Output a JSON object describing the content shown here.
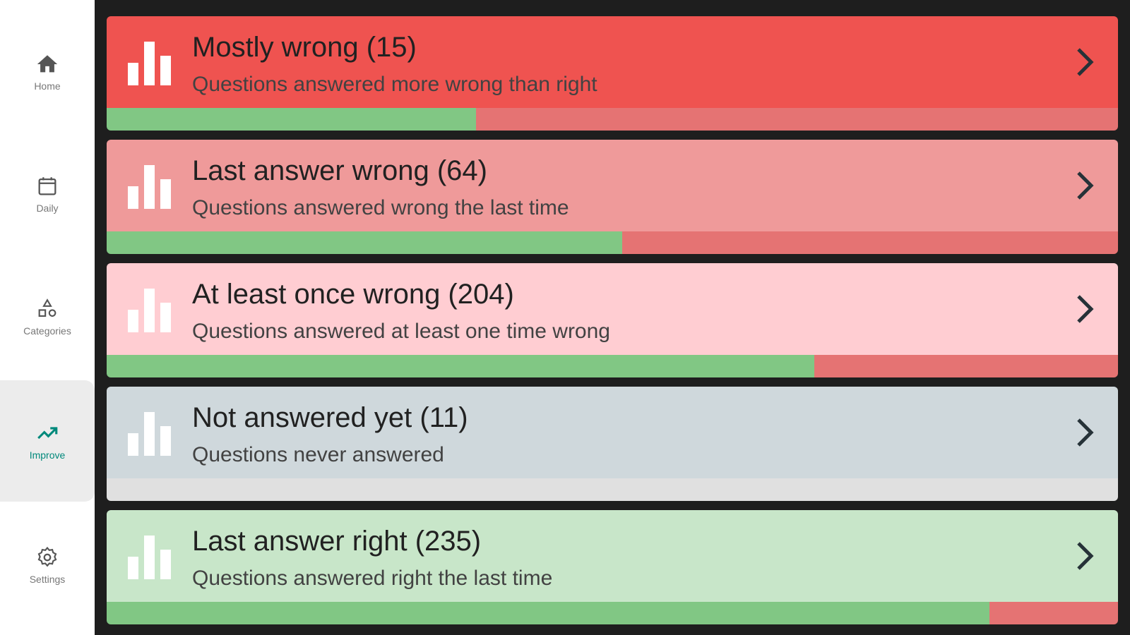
{
  "sidebar": {
    "items": [
      {
        "label": "Home",
        "icon": "home-icon",
        "selected": false
      },
      {
        "label": "Daily",
        "icon": "calendar-icon",
        "selected": false
      },
      {
        "label": "Categories",
        "icon": "shapes-icon",
        "selected": false
      },
      {
        "label": "Improve",
        "icon": "trending-up-icon",
        "selected": true
      },
      {
        "label": "Settings",
        "icon": "gear-icon",
        "selected": false
      }
    ]
  },
  "colors": {
    "accent": "#00897b",
    "green": "#81c784",
    "background": "#1e1e1e"
  },
  "cards": [
    {
      "title": "Mostly wrong (15)",
      "subtitle": "Questions answered more wrong than right",
      "progress": 0.365,
      "bg": "#ef5350",
      "rest": "#e57373"
    },
    {
      "title": "Last answer wrong (64)",
      "subtitle": "Questions answered wrong the last time",
      "progress": 0.51,
      "bg": "#ef9a9a",
      "rest": "#e57373"
    },
    {
      "title": "At least once wrong (204)",
      "subtitle": "Questions answered at least one time wrong",
      "progress": 0.7,
      "bg": "#ffcdd2",
      "rest": "#e57373"
    },
    {
      "title": "Not answered yet (11)",
      "subtitle": "Questions never answered",
      "progress": 0,
      "bg": "#cfd8dc",
      "rest": "#e0e0e0"
    },
    {
      "title": "Last answer right (235)",
      "subtitle": "Questions answered right the last time",
      "progress": 0.873,
      "bg": "#c8e6c9",
      "rest": "#e57373"
    }
  ]
}
